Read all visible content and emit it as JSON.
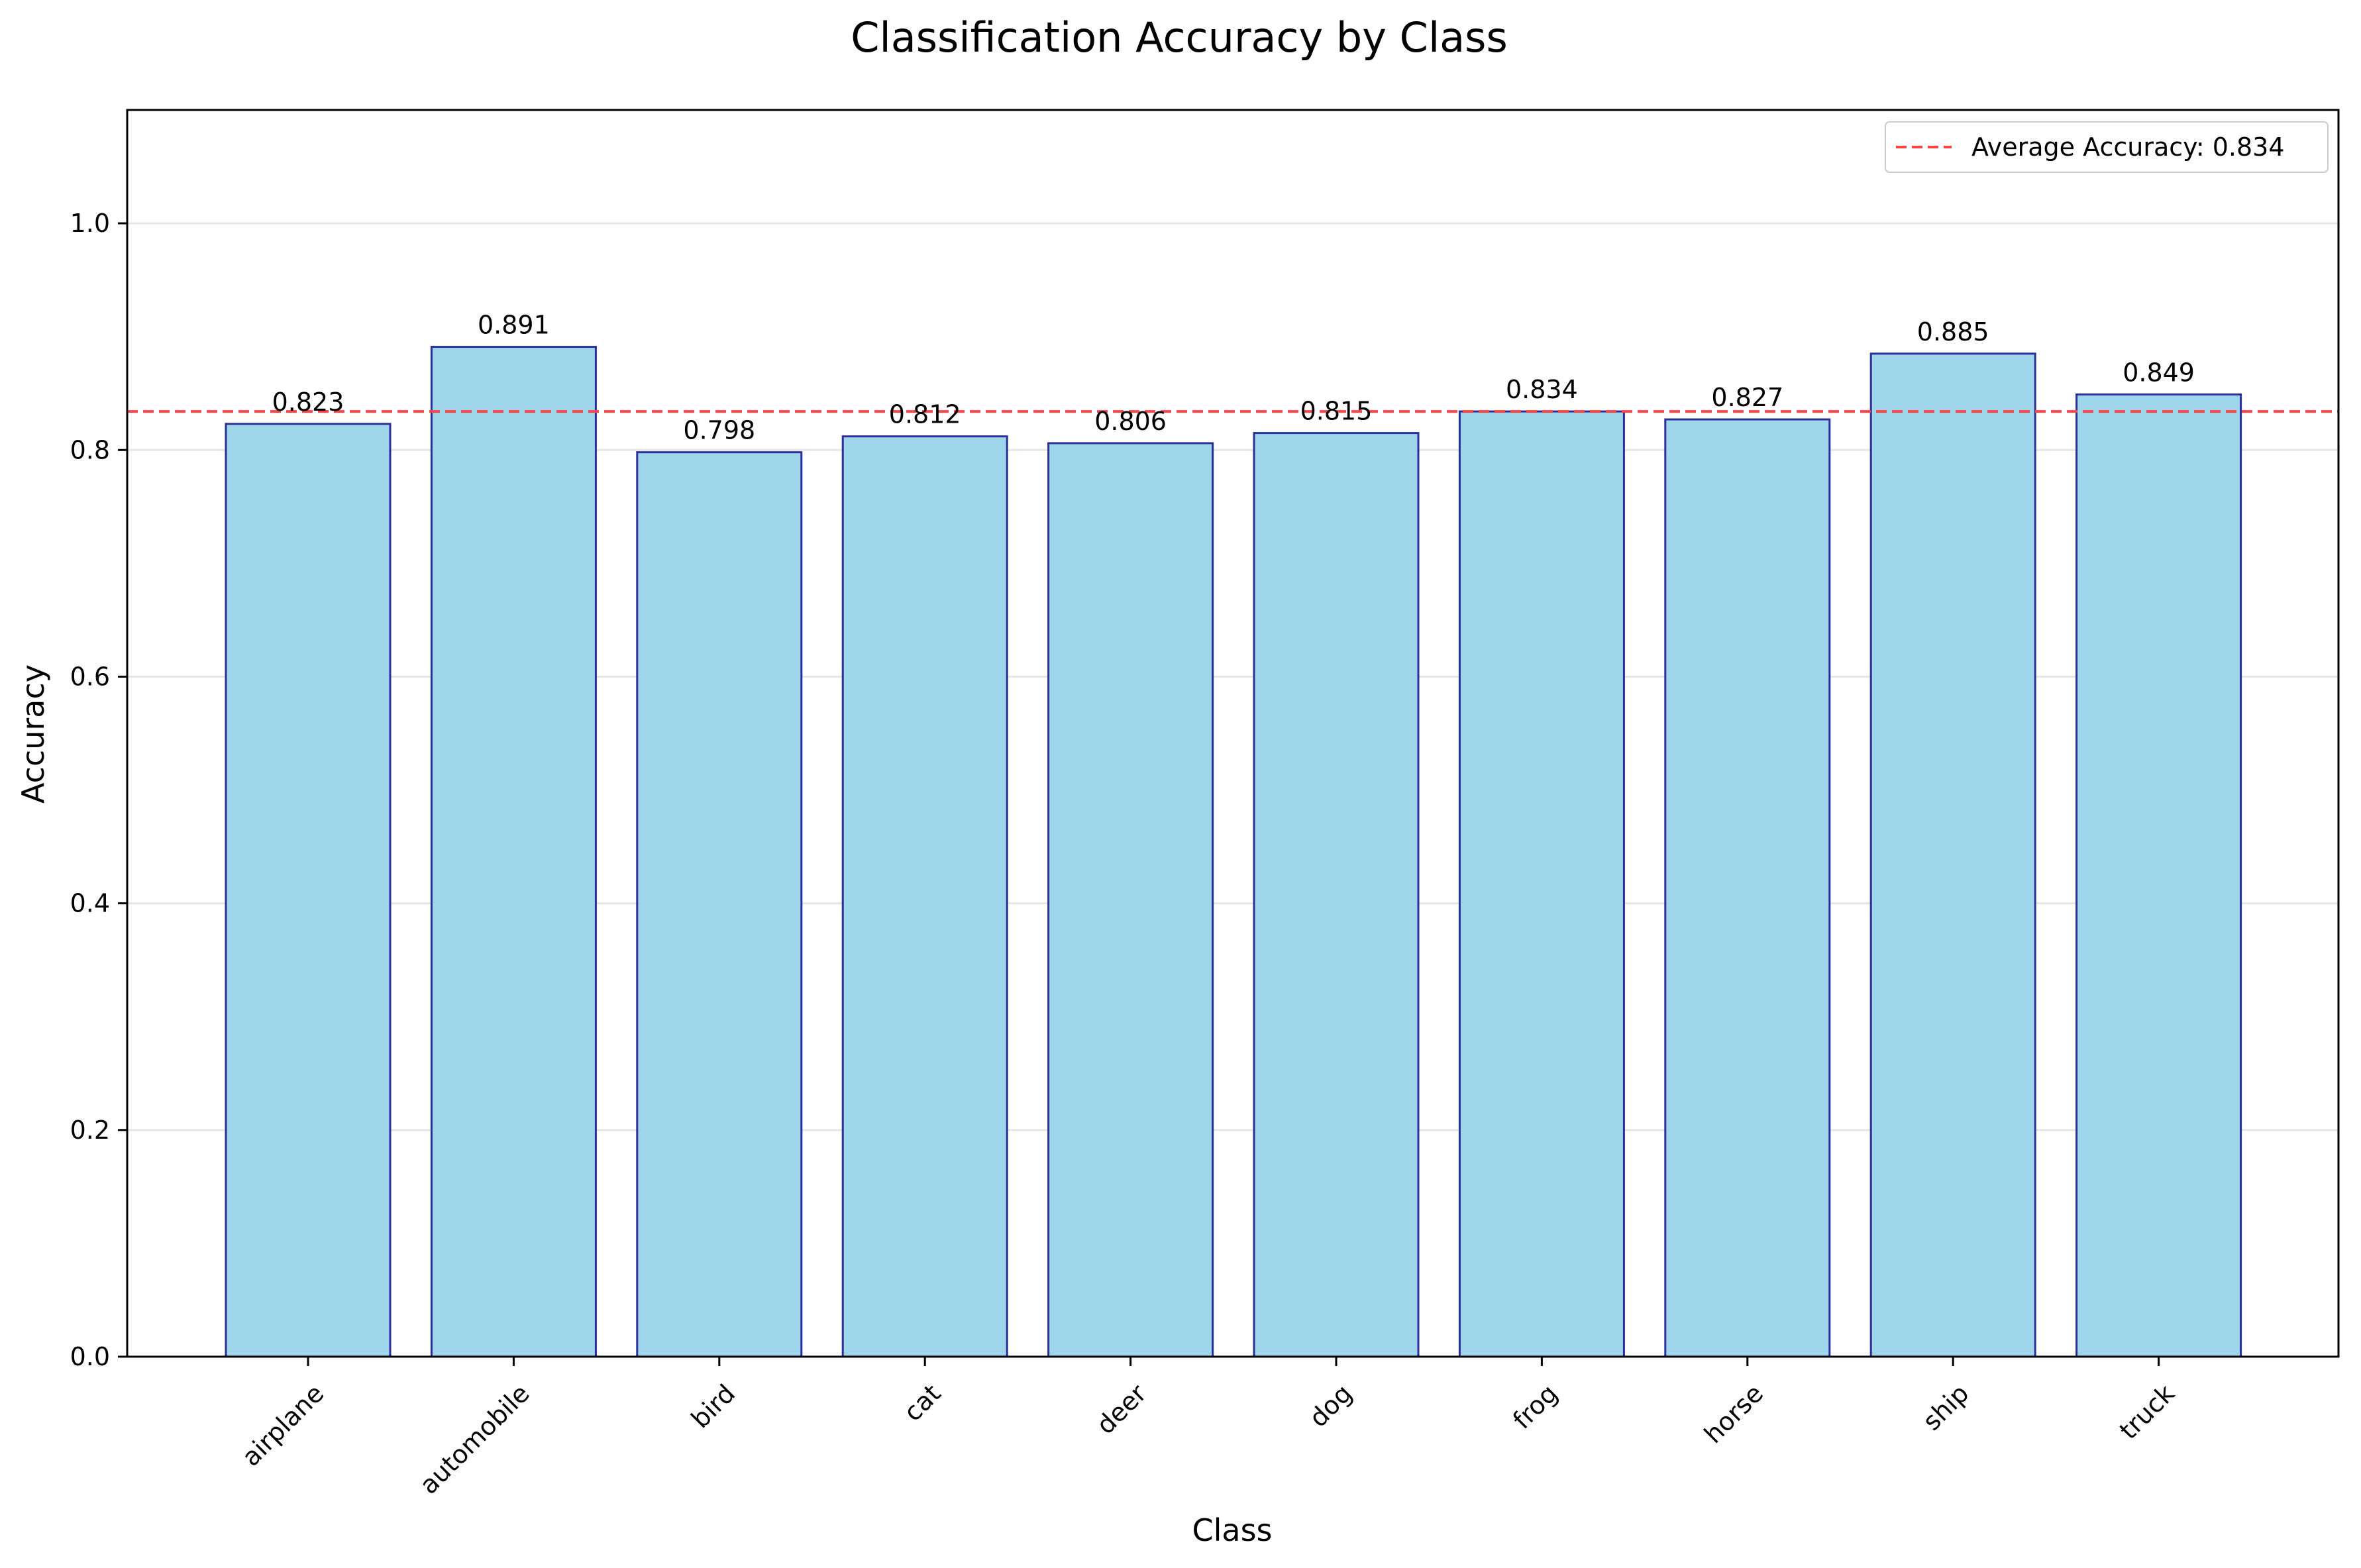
{
  "chart_data": {
    "type": "bar",
    "title": "Classification Accuracy by Class",
    "xlabel": "Class",
    "ylabel": "Accuracy",
    "categories": [
      "airplane",
      "automobile",
      "bird",
      "cat",
      "deer",
      "dog",
      "frog",
      "horse",
      "ship",
      "truck"
    ],
    "values": [
      0.823,
      0.891,
      0.798,
      0.812,
      0.806,
      0.815,
      0.834,
      0.827,
      0.885,
      0.849
    ],
    "data_labels": [
      "0.823",
      "0.891",
      "0.798",
      "0.812",
      "0.806",
      "0.815",
      "0.834",
      "0.827",
      "0.885",
      "0.849"
    ],
    "ylim": [
      0,
      1.1
    ],
    "yticks": [
      0.0,
      0.2,
      0.4,
      0.6,
      0.8,
      1.0
    ],
    "ytick_labels": [
      "0.0",
      "0.2",
      "0.4",
      "0.6",
      "0.8",
      "1.0"
    ],
    "reference_line": {
      "value": 0.834,
      "label": "Average Accuracy: 0.834",
      "style": "dashed",
      "color": "#ff4444"
    },
    "grid": "y-only",
    "legend_position": "top-right",
    "colors": {
      "bar_fill": "#a0d6ec",
      "bar_edge": "#2a2f99",
      "grid": "#e6e6e6"
    }
  }
}
